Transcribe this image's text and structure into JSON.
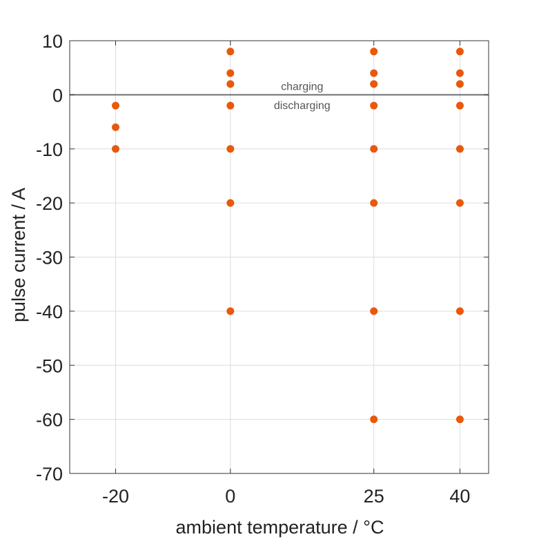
{
  "chart_data": {
    "type": "scatter",
    "xlabel": "ambient temperature / °C",
    "ylabel": "pulse current / A",
    "xlim": [
      -28,
      45
    ],
    "ylim": [
      -70,
      10
    ],
    "xticks": [
      -20,
      0,
      25,
      40
    ],
    "xtick_labels": [
      "-20",
      "0",
      "25",
      "40"
    ],
    "yticks": [
      10,
      0,
      -10,
      -20,
      -30,
      -40,
      -50,
      -60,
      -70
    ],
    "ytick_labels": [
      "10",
      "0",
      "-10",
      "-20",
      "-30",
      "-40",
      "-50",
      "-60",
      "-70"
    ],
    "grid": true,
    "marker_color": "#e8590c",
    "reference_line": {
      "y": 0,
      "color": "#6e6e6e"
    },
    "annotations": [
      {
        "text": "charging",
        "x": 12.5,
        "y": 1.5
      },
      {
        "text": "discharging",
        "x": 12.5,
        "y": -2
      }
    ],
    "points": [
      {
        "x": -20,
        "y": -2
      },
      {
        "x": -20,
        "y": -6
      },
      {
        "x": -20,
        "y": -10
      },
      {
        "x": 0,
        "y": 8
      },
      {
        "x": 0,
        "y": 4
      },
      {
        "x": 0,
        "y": 2
      },
      {
        "x": 0,
        "y": -2
      },
      {
        "x": 0,
        "y": -10
      },
      {
        "x": 0,
        "y": -20
      },
      {
        "x": 0,
        "y": -40
      },
      {
        "x": 25,
        "y": 8
      },
      {
        "x": 25,
        "y": 4
      },
      {
        "x": 25,
        "y": 2
      },
      {
        "x": 25,
        "y": -2
      },
      {
        "x": 25,
        "y": -10
      },
      {
        "x": 25,
        "y": -20
      },
      {
        "x": 25,
        "y": -40
      },
      {
        "x": 25,
        "y": -60
      },
      {
        "x": 40,
        "y": 8
      },
      {
        "x": 40,
        "y": 4
      },
      {
        "x": 40,
        "y": 2
      },
      {
        "x": 40,
        "y": -2
      },
      {
        "x": 40,
        "y": -10
      },
      {
        "x": 40,
        "y": -20
      },
      {
        "x": 40,
        "y": -40
      },
      {
        "x": 40,
        "y": -60
      }
    ]
  }
}
